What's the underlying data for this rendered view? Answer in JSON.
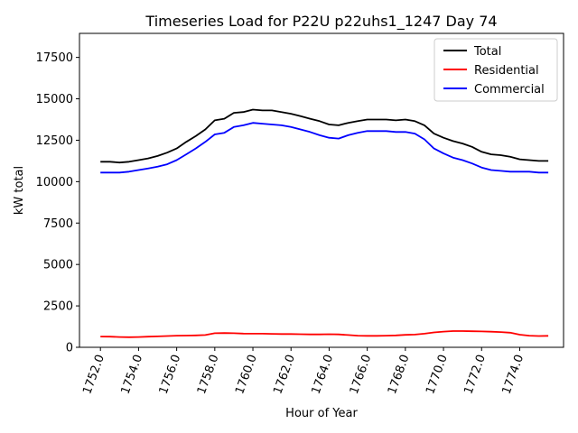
{
  "chart_data": {
    "type": "line",
    "title": "Timeseries Load for P22U p22uhs1_1247  Day 74",
    "xlabel": "Hour of Year",
    "ylabel": "kW total",
    "xlim": [
      1750.9,
      1776.3
    ],
    "ylim": [
      0,
      18950
    ],
    "xticks": [
      1752,
      1754,
      1756,
      1758,
      1760,
      1762,
      1764,
      1766,
      1768,
      1770,
      1772,
      1774
    ],
    "xtick_labels": [
      "1752.0",
      "1754.0",
      "1756.0",
      "1758.0",
      "1760.0",
      "1762.0",
      "1764.0",
      "1766.0",
      "1768.0",
      "1770.0",
      "1772.0",
      "1774.0"
    ],
    "yticks": [
      0,
      2500,
      5000,
      7500,
      10000,
      12500,
      15000,
      17500
    ],
    "ytick_labels": [
      "0",
      "2500",
      "5000",
      "7500",
      "10000",
      "12500",
      "15000",
      "17500"
    ],
    "grid": false,
    "legend_position": "top-right",
    "x": [
      1752.0,
      1752.5,
      1753.0,
      1753.5,
      1754.0,
      1754.5,
      1755.0,
      1755.5,
      1756.0,
      1756.5,
      1757.0,
      1757.5,
      1758.0,
      1758.5,
      1759.0,
      1759.5,
      1760.0,
      1760.5,
      1761.0,
      1761.5,
      1762.0,
      1762.5,
      1763.0,
      1763.5,
      1764.0,
      1764.5,
      1765.0,
      1765.5,
      1766.0,
      1766.5,
      1767.0,
      1767.5,
      1768.0,
      1768.5,
      1769.0,
      1769.5,
      1770.0,
      1770.5,
      1771.0,
      1771.5,
      1772.0,
      1772.5,
      1773.0,
      1773.5,
      1774.0,
      1774.5,
      1775.0,
      1775.5
    ],
    "series": [
      {
        "name": "Total",
        "color": "#000000",
        "values": [
          11200,
          11200,
          11150,
          11200,
          11300,
          11400,
          11550,
          11750,
          12000,
          12400,
          12750,
          13150,
          13700,
          13800,
          14150,
          14200,
          14350,
          14300,
          14300,
          14200,
          14100,
          13950,
          13800,
          13650,
          13450,
          13400,
          13550,
          13650,
          13750,
          13750,
          13750,
          13700,
          13750,
          13650,
          13400,
          12900,
          12650,
          12450,
          12300,
          12100,
          11800,
          11650,
          11600,
          11500,
          11350,
          11300,
          11250,
          11250
        ]
      },
      {
        "name": "Residential",
        "color": "#ff0000",
        "values": [
          650,
          640,
          620,
          610,
          620,
          640,
          660,
          680,
          700,
          710,
          720,
          740,
          850,
          860,
          850,
          830,
          820,
          820,
          810,
          800,
          800,
          790,
          780,
          780,
          790,
          780,
          740,
          700,
          690,
          690,
          700,
          720,
          750,
          770,
          820,
          900,
          950,
          980,
          980,
          970,
          960,
          940,
          920,
          880,
          760,
          700,
          680,
          690
        ]
      },
      {
        "name": "Commercial",
        "color": "#0000ff",
        "values": [
          10550,
          10550,
          10550,
          10600,
          10700,
          10800,
          10900,
          11050,
          11300,
          11650,
          12000,
          12400,
          12850,
          12950,
          13300,
          13400,
          13550,
          13500,
          13450,
          13400,
          13300,
          13150,
          13000,
          12800,
          12650,
          12600,
          12800,
          12950,
          13050,
          13050,
          13050,
          13000,
          13000,
          12900,
          12550,
          12000,
          11700,
          11450,
          11300,
          11100,
          10850,
          10700,
          10650,
          10600,
          10600,
          10600,
          10550,
          10550
        ]
      }
    ]
  }
}
